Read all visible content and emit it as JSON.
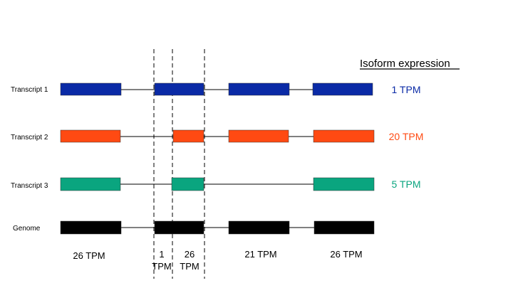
{
  "header": {
    "title": "Isoform expression"
  },
  "colors": {
    "transcript_1": "#0a2aa6",
    "transcript_2": "#ff4a12",
    "transcript_3": "#0aa57f",
    "genome": "#000000",
    "intron_line": "#000000",
    "dash_line": "#000000"
  },
  "rows": [
    {
      "id": "transcript-1",
      "label": "Transcript 1",
      "tpm": "1 TPM",
      "color_key": "transcript_1"
    },
    {
      "id": "transcript-2",
      "label": "Transcript 2",
      "tpm": "20 TPM",
      "color_key": "transcript_2"
    },
    {
      "id": "transcript-3",
      "label": "Transcript 3",
      "tpm": "5 TPM",
      "color_key": "transcript_3"
    },
    {
      "id": "genome",
      "label": "Genome",
      "tpm": "",
      "color_key": "genome"
    }
  ],
  "segments": [
    {
      "id": "segment-1",
      "label_lines": [
        "26 TPM"
      ]
    },
    {
      "id": "segment-2",
      "label_lines": [
        "1",
        "TPM"
      ]
    },
    {
      "id": "segment-3",
      "label_lines": [
        "26",
        "TPM"
      ]
    },
    {
      "id": "segment-4",
      "label_lines": [
        "21 TPM"
      ]
    },
    {
      "id": "segment-5",
      "label_lines": [
        "26 TPM"
      ]
    }
  ]
}
